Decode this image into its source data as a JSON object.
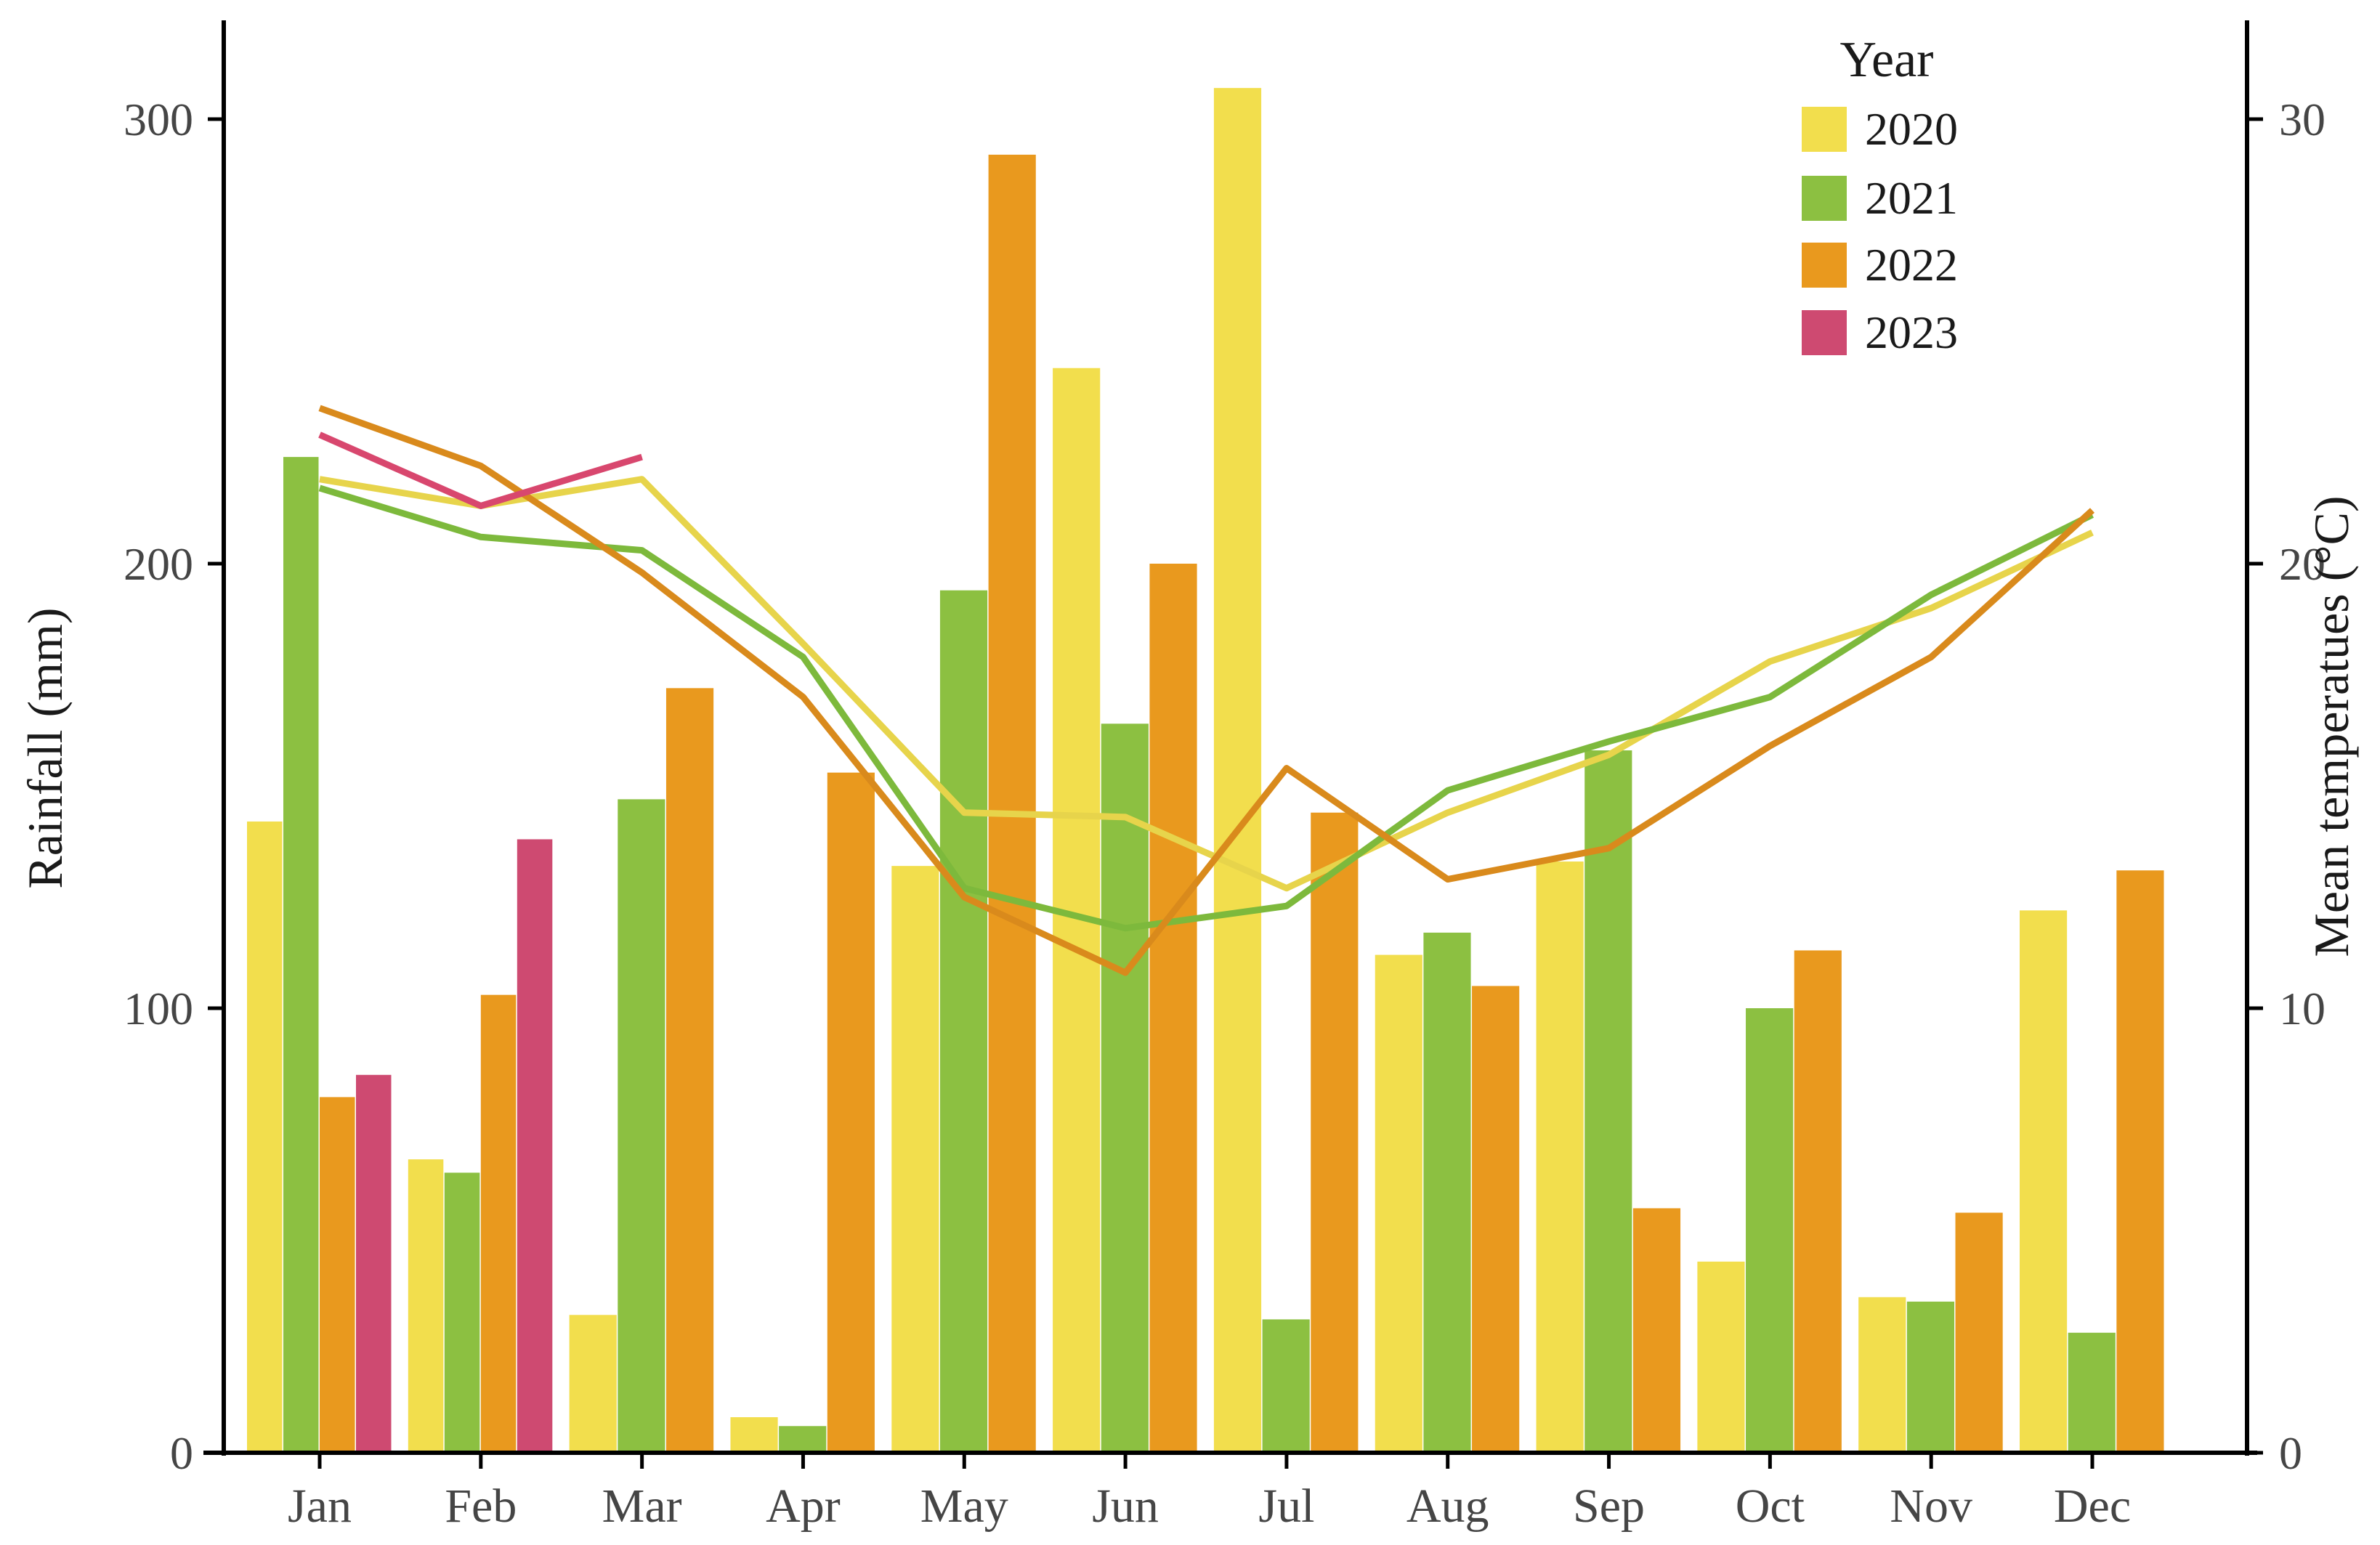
{
  "figure": {
    "left_axis_title": "Rainfall (mm)",
    "right_axis_title": "Mean temperatues (°C)",
    "legend_title": "Year",
    "text_color": "#1a1a1a",
    "tick_label_color": "#454545",
    "axis_line_color": "#000000",
    "background_color": "#ffffff"
  },
  "chart_data": {
    "type": "bar+line combo (dual axis)",
    "categories": [
      "Jan",
      "Feb",
      "Mar",
      "Apr",
      "May",
      "Jun",
      "Jul",
      "Aug",
      "Sep",
      "Oct",
      "Nov",
      "Dec"
    ],
    "left_axis": {
      "label": "Rainfall (mm)",
      "ticks": [
        0,
        100,
        200,
        300
      ],
      "lim": [
        0,
        322
      ],
      "unit": "mm"
    },
    "right_axis": {
      "label": "Mean temperatues (°C)",
      "ticks": [
        0,
        10,
        20,
        30
      ],
      "lim": [
        0,
        32.2
      ],
      "unit": "°C"
    },
    "legend": {
      "title": "Year",
      "entries": [
        "2020",
        "2021",
        "2022",
        "2023"
      ],
      "position": "top-right-inside"
    },
    "grid": "off",
    "bar_series": [
      {
        "name": "2020",
        "color": "#F2DE4D",
        "axis": "left",
        "values": [
          142,
          66,
          31,
          8,
          132,
          244,
          307,
          112,
          133,
          43,
          35,
          122
        ]
      },
      {
        "name": "2021",
        "color": "#8CC041",
        "axis": "left",
        "values": [
          224,
          63,
          147,
          6,
          194,
          164,
          30,
          117,
          158,
          100,
          34,
          27
        ]
      },
      {
        "name": "2022",
        "color": "#E9991E",
        "axis": "left",
        "values": [
          80,
          103,
          172,
          153,
          292,
          200,
          144,
          105,
          55,
          113,
          54,
          131
        ]
      },
      {
        "name": "2023",
        "color": "#CE4A71",
        "axis": "left",
        "values": [
          85,
          138,
          null,
          null,
          null,
          null,
          null,
          null,
          null,
          null,
          null,
          null
        ]
      }
    ],
    "line_series": [
      {
        "name": "2020",
        "color": "#E7D44B",
        "axis": "right",
        "values": [
          21.9,
          21.3,
          21.9,
          18.2,
          14.4,
          14.3,
          12.7,
          14.4,
          15.7,
          17.8,
          19.0,
          20.7
        ]
      },
      {
        "name": "2021",
        "color": "#7DB93C",
        "axis": "right",
        "values": [
          21.7,
          20.6,
          20.3,
          17.9,
          12.7,
          11.8,
          12.3,
          14.9,
          16.0,
          17.0,
          19.3,
          21.1
        ]
      },
      {
        "name": "2022",
        "color": "#D98A1C",
        "axis": "right",
        "values": [
          23.5,
          22.2,
          19.8,
          17.0,
          12.5,
          10.8,
          15.4,
          12.9,
          13.6,
          15.9,
          17.9,
          21.2
        ]
      },
      {
        "name": "2023",
        "color": "#D8476E",
        "axis": "right",
        "values": [
          22.9,
          21.3,
          22.4,
          null,
          null,
          null,
          null,
          null,
          null,
          null,
          null,
          null
        ]
      }
    ]
  }
}
